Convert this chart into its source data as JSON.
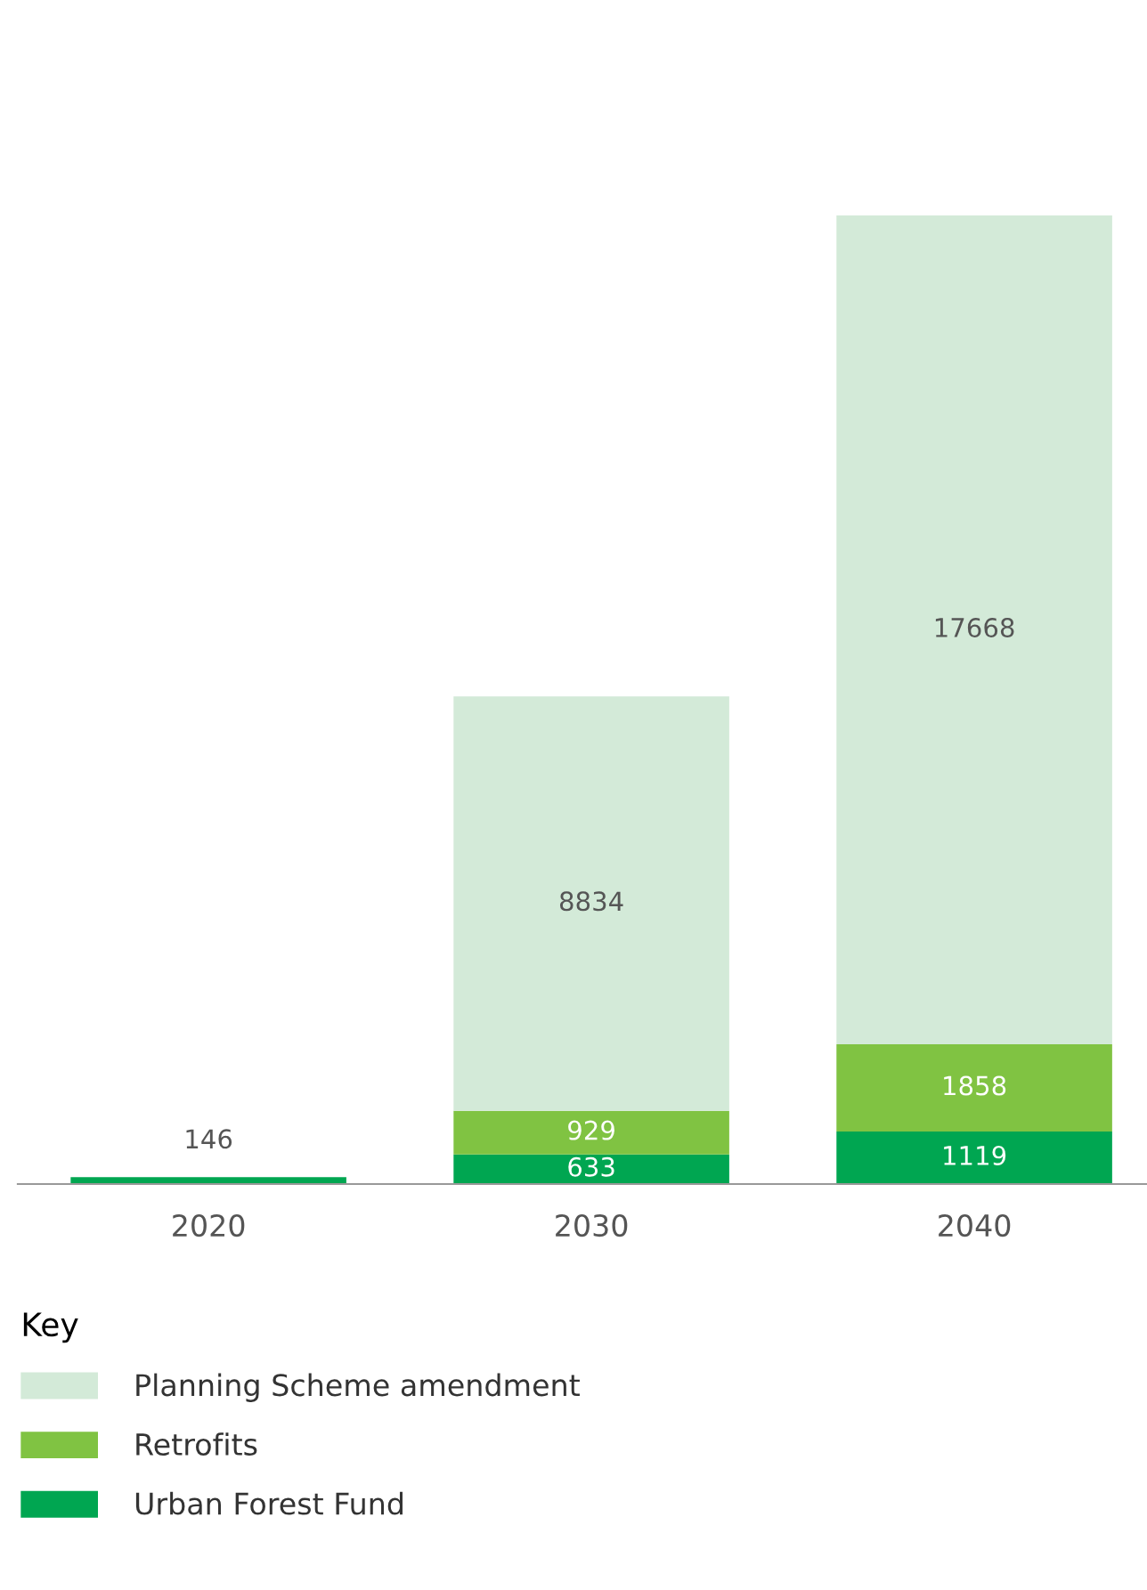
{
  "chart_data": {
    "type": "bar",
    "stacked": true,
    "categories": [
      "2020",
      "2030",
      "2040"
    ],
    "series": [
      {
        "name": "Urban Forest Fund",
        "color": "#00a651",
        "values": [
          146,
          633,
          1119
        ]
      },
      {
        "name": "Retrofits",
        "color": "#80c342",
        "values": [
          null,
          929,
          1858
        ]
      },
      {
        "name": "Planning Scheme amendment",
        "color": "#d3ead8",
        "values": [
          null,
          8834,
          17668
        ]
      }
    ],
    "data_labels": true,
    "legend": "bottom",
    "legend_title": "Key",
    "grid": false
  }
}
